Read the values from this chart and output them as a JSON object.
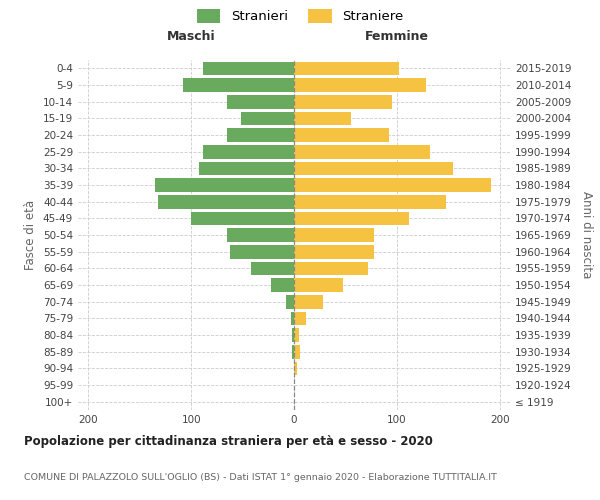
{
  "age_groups": [
    "100+",
    "95-99",
    "90-94",
    "85-89",
    "80-84",
    "75-79",
    "70-74",
    "65-69",
    "60-64",
    "55-59",
    "50-54",
    "45-49",
    "40-44",
    "35-39",
    "30-34",
    "25-29",
    "20-24",
    "15-19",
    "10-14",
    "5-9",
    "0-4"
  ],
  "birth_years": [
    "≤ 1919",
    "1920-1924",
    "1925-1929",
    "1930-1934",
    "1935-1939",
    "1940-1944",
    "1945-1949",
    "1950-1954",
    "1955-1959",
    "1960-1964",
    "1965-1969",
    "1970-1974",
    "1975-1979",
    "1980-1984",
    "1985-1989",
    "1990-1994",
    "1995-1999",
    "2000-2004",
    "2005-2009",
    "2010-2014",
    "2015-2019"
  ],
  "males": [
    0,
    0,
    0,
    2,
    2,
    3,
    8,
    22,
    42,
    62,
    65,
    100,
    132,
    135,
    92,
    88,
    65,
    52,
    65,
    108,
    88
  ],
  "females": [
    0,
    0,
    3,
    6,
    5,
    12,
    28,
    48,
    72,
    78,
    78,
    112,
    148,
    192,
    155,
    132,
    92,
    55,
    95,
    128,
    102
  ],
  "male_color": "#6aaa5e",
  "female_color": "#f5c242",
  "bg_color": "#ffffff",
  "grid_color": "#cccccc",
  "center_line_color": "#888888",
  "title": "Popolazione per cittadinanza straniera per età e sesso - 2020",
  "subtitle": "COMUNE DI PALAZZOLO SULL'OGLIO (BS) - Dati ISTAT 1° gennaio 2020 - Elaborazione TUTTITALIA.IT",
  "header_left": "Maschi",
  "header_right": "Femmine",
  "ylabel_left": "Fasce di età",
  "ylabel_right": "Anni di nascita",
  "legend_male": "Stranieri",
  "legend_female": "Straniere",
  "xlim": 210,
  "bar_height": 0.82,
  "tick_fontsize": 7.5,
  "header_fontsize": 9,
  "title_fontsize": 8.5,
  "subtitle_fontsize": 6.8
}
